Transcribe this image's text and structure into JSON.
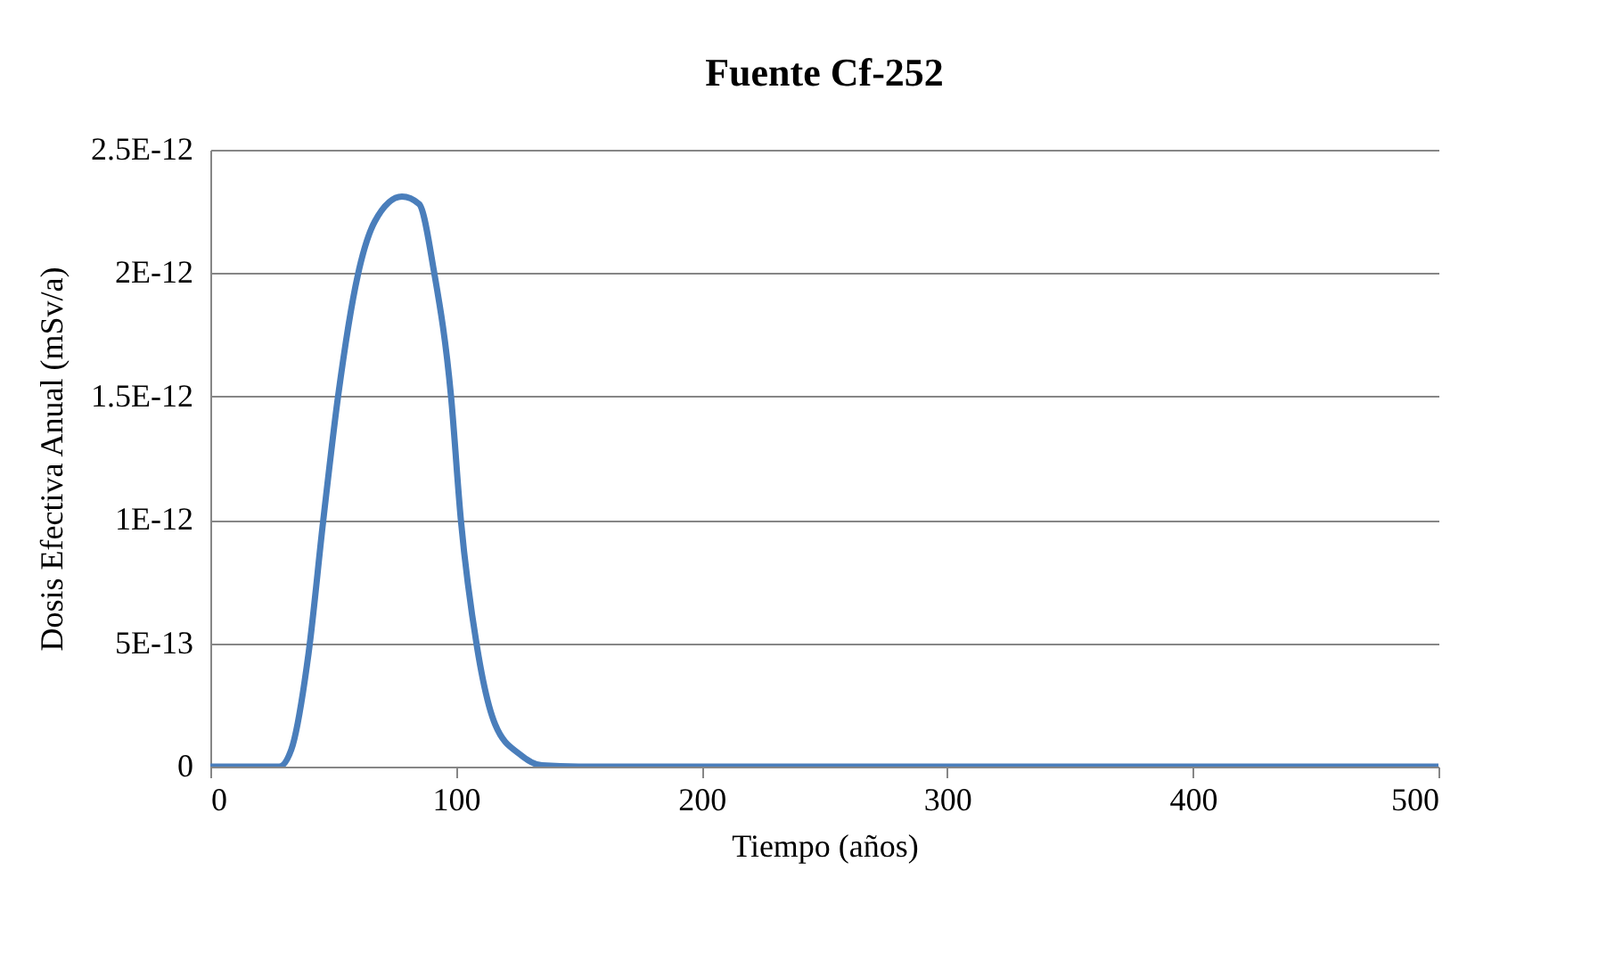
{
  "chart_data": {
    "type": "line",
    "title": "Fuente Cf-252",
    "xlabel": "Tiempo (años)",
    "ylabel": "Dosis Efectiva Anual (mSv/a)",
    "x": [
      0,
      28,
      33,
      40,
      46,
      52,
      60,
      67,
      78,
      85,
      91,
      98,
      102,
      108.5,
      116,
      126,
      135,
      150,
      200,
      300,
      400,
      500
    ],
    "series": [
      {
        "color": "#4a7ebb",
        "values": [
          0,
          0,
          7e-14,
          4.6e-13,
          1e-12,
          1.5e-12,
          1.99e-12,
          2.21e-12,
          2.31e-12,
          2.28e-12,
          2.01e-12,
          1.5e-12,
          1e-12,
          4.9e-13,
          1.7e-13,
          5e-14,
          5e-15,
          0,
          0,
          0,
          0,
          0
        ]
      }
    ],
    "xlim": [
      0,
      500
    ],
    "xticks": [
      0,
      100,
      200,
      300,
      400,
      500
    ],
    "ylim": [
      0,
      2.5e-12
    ],
    "yticks": [
      {
        "value": 0,
        "label": "0"
      },
      {
        "value": 5e-13,
        "label": "5E-13"
      },
      {
        "value": 1e-12,
        "label": "1E-12"
      },
      {
        "value": 1.5e-12,
        "label": "1.5E-12"
      },
      {
        "value": 2e-12,
        "label": "2E-12"
      },
      {
        "value": 2.5e-12,
        "label": "2.5E-12"
      }
    ],
    "grid": "y"
  }
}
